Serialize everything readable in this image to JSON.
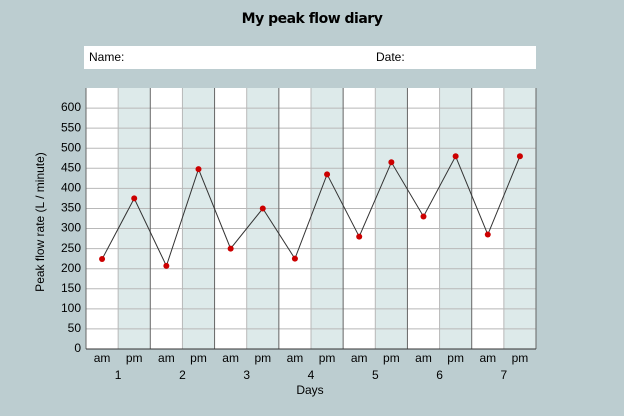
{
  "chart_data": {
    "type": "line",
    "title": "My peak flow diary",
    "form_fields": [
      "Name:",
      "Date:"
    ],
    "x_label": "Days",
    "y_label": "Peak flow rate (L / minute)",
    "categories": [
      "am",
      "pm",
      "am",
      "pm",
      "am",
      "pm",
      "am",
      "pm",
      "am",
      "pm",
      "am",
      "pm",
      "am",
      "pm"
    ],
    "groups": [
      "1",
      "2",
      "3",
      "4",
      "5",
      "6",
      "7"
    ],
    "series": [
      {
        "name": "Peak flow",
        "color": "#333333",
        "marker_color": "#cc0000",
        "values": [
          224,
          375,
          207,
          448,
          250,
          350,
          225,
          435,
          280,
          465,
          330,
          480,
          285,
          480
        ]
      }
    ],
    "ylim": [
      0,
      650
    ],
    "yticks": [
      0,
      50,
      100,
      150,
      200,
      250,
      300,
      350,
      400,
      450,
      500,
      550,
      600
    ],
    "grid": true,
    "shade_color": "#ddeaea"
  }
}
